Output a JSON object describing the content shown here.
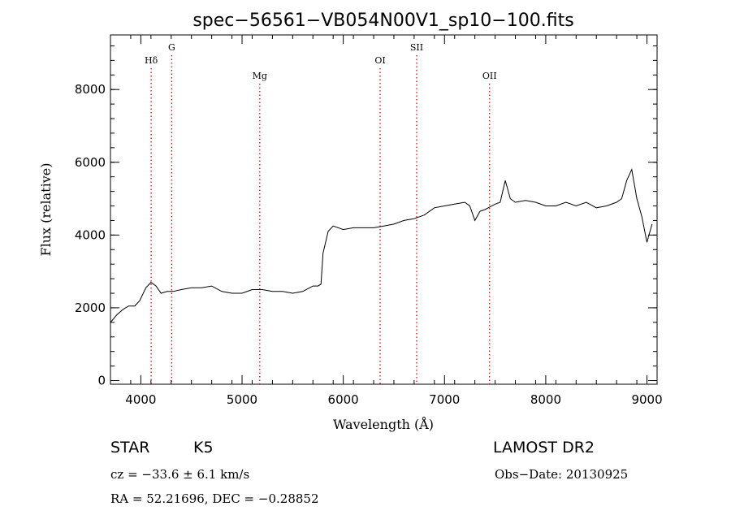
{
  "chart_data": {
    "type": "line",
    "title": "spec−56561−VB054N00V1_sp10−100.fits",
    "xlabel": "Wavelength (Å)",
    "ylabel": "Flux (relative)",
    "xlim": [
      3700,
      9100
    ],
    "ylim": [
      -100,
      9500
    ],
    "x_ticks": [
      4000,
      5000,
      6000,
      7000,
      8000,
      9000
    ],
    "y_ticks": [
      0,
      2000,
      4000,
      6000,
      8000
    ],
    "x_minor_step": 200,
    "y_minor_step": 400,
    "grid": false,
    "line_color": "#000000",
    "marker_color": "#cc0000",
    "spectral_lines": [
      {
        "label": "Hδ",
        "x": 4102,
        "label_level": 2
      },
      {
        "label": "G",
        "x": 4305,
        "label_level": 1
      },
      {
        "label": "Mg",
        "x": 5175,
        "label_level": 3
      },
      {
        "label": "OI",
        "x": 6364,
        "label_level": 2
      },
      {
        "label": "SII",
        "x": 6725,
        "label_level": 1
      },
      {
        "label": "OII",
        "x": 7445,
        "label_level": 3
      }
    ],
    "series": [
      {
        "x": [
          3700,
          3760,
          3820,
          3880,
          3940,
          3990,
          4050,
          4100,
          4150,
          4200,
          4260,
          4320,
          4400,
          4500,
          4600,
          4700,
          4800,
          4900,
          5000,
          5100,
          5200,
          5300,
          5400,
          5500,
          5600,
          5700,
          5750,
          5780,
          5800,
          5850,
          5900,
          6000,
          6100,
          6200,
          6300,
          6400,
          6500,
          6600,
          6700,
          6800,
          6900,
          7000,
          7100,
          7200,
          7250,
          7300,
          7350,
          7400,
          7500,
          7550,
          7600,
          7650,
          7700,
          7800,
          7900,
          8000,
          8100,
          8200,
          8300,
          8400,
          8500,
          8600,
          8700,
          8750,
          8800,
          8850,
          8900,
          8950,
          9000,
          9050
        ],
        "y": [
          1600,
          1800,
          1950,
          2050,
          2050,
          2200,
          2550,
          2700,
          2600,
          2400,
          2450,
          2450,
          2500,
          2550,
          2550,
          2600,
          2450,
          2400,
          2400,
          2500,
          2500,
          2450,
          2450,
          2400,
          2450,
          2600,
          2600,
          2650,
          3500,
          4100,
          4250,
          4150,
          4200,
          4200,
          4200,
          4250,
          4300,
          4400,
          4450,
          4550,
          4750,
          4800,
          4850,
          4900,
          4800,
          4400,
          4650,
          4700,
          4850,
          4900,
          5500,
          5000,
          4900,
          4950,
          4900,
          4800,
          4800,
          4900,
          4800,
          4900,
          4750,
          4800,
          4900,
          5000,
          5500,
          5800,
          5000,
          4500,
          3800,
          4300
        ]
      }
    ]
  },
  "info": {
    "object_class": "STAR",
    "subclass": "K5",
    "survey": "LAMOST DR2",
    "redshift": "cz = −33.6 ± 6.1 km/s",
    "obs_date": "Obs−Date: 20130925",
    "coords": "RA =  52.21696, DEC =  −0.28852"
  }
}
